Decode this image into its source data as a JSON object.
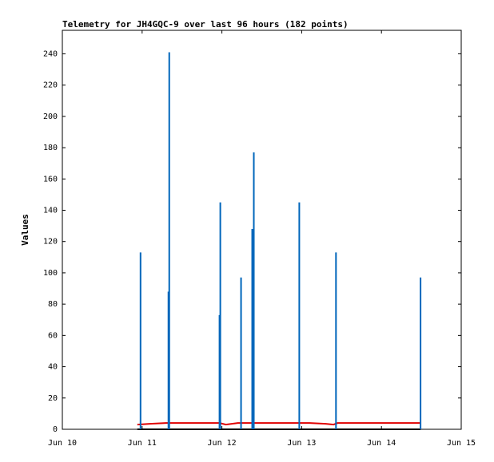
{
  "chart_data": {
    "type": "line",
    "title": "Telemetry for JH4GQC-9 over last 96 hours (182 points)",
    "y_label": "Values",
    "xlim": [
      0,
      5
    ],
    "xticks": [
      {
        "value": 0,
        "label": "Jun 10"
      },
      {
        "value": 1,
        "label": "Jun 11"
      },
      {
        "value": 2,
        "label": "Jun 12"
      },
      {
        "value": 3,
        "label": "Jun 13"
      },
      {
        "value": 4,
        "label": "Jun 14"
      },
      {
        "value": 5,
        "label": "Jun 15"
      }
    ],
    "ylim": [
      0,
      255
    ],
    "yticks": [
      0,
      20,
      40,
      60,
      80,
      100,
      120,
      140,
      160,
      180,
      200,
      220,
      240
    ],
    "grid": false,
    "series": [
      {
        "color": "#000000",
        "draw": "line",
        "x": [
          0.94,
          4.49
        ],
        "values": [
          0,
          0
        ]
      },
      {
        "color": "#e00000",
        "draw": "line",
        "x": [
          0.94,
          1.1,
          1.3,
          1.97,
          2.05,
          2.2,
          3.1,
          3.3,
          3.4,
          3.45,
          4.49
        ],
        "values": [
          3,
          3.5,
          4,
          4,
          3,
          4,
          4,
          3.5,
          3,
          4,
          4
        ]
      },
      {
        "color": "#0066bb",
        "draw": "impulses",
        "x": [
          0.98,
          1.33,
          1.34,
          1.97,
          1.98,
          2.24,
          2.38,
          2.4,
          2.97,
          3.43,
          4.49
        ],
        "values": [
          113,
          88,
          241,
          73,
          145,
          97,
          128,
          177,
          145,
          113,
          97
        ]
      }
    ]
  }
}
